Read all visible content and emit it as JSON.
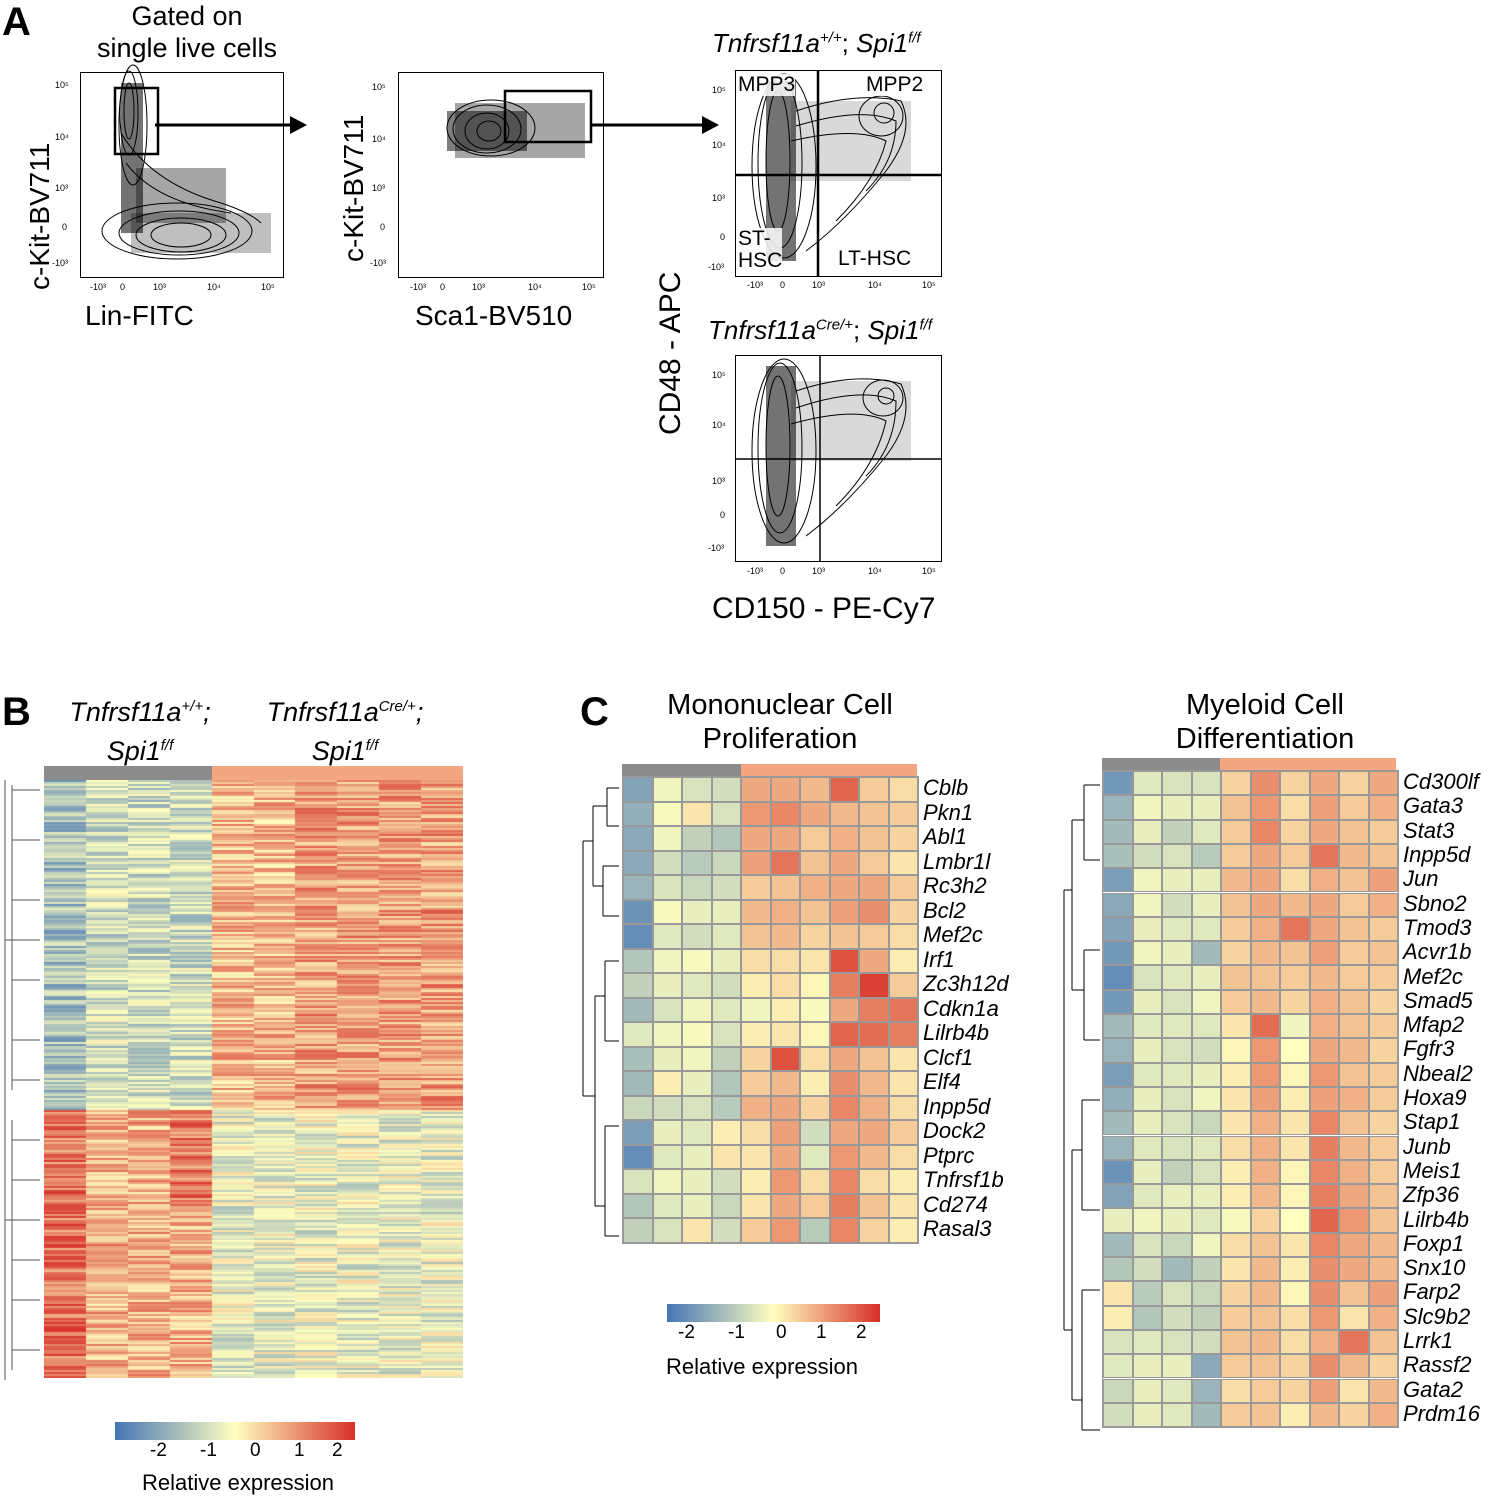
{
  "colors": {
    "ctrl_bar": "#8c8c8c",
    "cre_bar": "#f4a582",
    "low": "#4575b4",
    "mid": "#ffffbf",
    "high": "#d73027"
  },
  "panelA": {
    "label": "A",
    "gate_note_line1": "Gated on",
    "gate_note_line2": "single live cells",
    "plot1": {
      "xlabel": "Lin-FITC",
      "ylabel": "c-Kit-BV711"
    },
    "plot2": {
      "xlabel": "Sca1-BV510",
      "ylabel": "c-Kit-BV711"
    },
    "genotype_top": {
      "gene": "Tnfrsf11a",
      "gene_sup": "+/+",
      "sep": "; ",
      "flox": "Spi1",
      "flox_sup": "f/f"
    },
    "genotype_bottom": {
      "gene": "Tnfrsf11a",
      "gene_sup": "Cre/+",
      "sep": "; ",
      "flox": "Spi1",
      "flox_sup": "f/f"
    },
    "quadrants": {
      "tl": "MPP3",
      "tr": "MPP2",
      "bl_line1": "ST-",
      "bl_line2": "HSC",
      "br": "LT-HSC"
    },
    "shared_ylabel": "CD48 - APC",
    "shared_xlabel": "CD150 - PE-Cy7",
    "ticks_y": [
      "10⁵",
      "10⁴",
      "10³",
      "0",
      "-10³"
    ],
    "ticks_x": [
      "-10³",
      "0",
      "10³",
      "10⁴",
      "10⁵"
    ]
  },
  "panelB": {
    "label": "B",
    "group1": {
      "gene": "Tnfrsf11a",
      "gene_sup": "+/+",
      "flox": "Spi1",
      "flox_sup": "f/f"
    },
    "group2": {
      "gene": "Tnfrsf11a",
      "gene_sup": "Cre/+",
      "flox": "Spi1",
      "flox_sup": "f/f"
    },
    "legend": {
      "ticks": [
        "-2",
        "-1",
        "0",
        "1",
        "2"
      ],
      "title": "Relative expression"
    }
  },
  "panelC": {
    "label": "C",
    "heat1": {
      "title_line1": "Mononuclear Cell",
      "title_line2": "Proliferation",
      "genes": [
        "Cblb",
        "Pkn1",
        "Abl1",
        "Lmbr1l",
        "Rc3h2",
        "Bcl2",
        "Mef2c",
        "Irf1",
        "Zc3h12d",
        "Cdkn1a",
        "Lilrb4b",
        "Clcf1",
        "Elf4",
        "Inpp5d",
        "Dock2",
        "Ptprc",
        "Tnfrsf1b",
        "Cd274",
        "Rasal3"
      ],
      "matrix": [
        [
          -1.6,
          -0.2,
          -0.5,
          -0.6,
          1.0,
          1.0,
          0.8,
          1.8,
          0.6,
          0.4
        ],
        [
          -1.4,
          -0.1,
          0.3,
          -0.5,
          1.2,
          1.4,
          1.0,
          0.8,
          0.7,
          0.6
        ],
        [
          -1.5,
          -0.2,
          -0.8,
          -1.0,
          1.0,
          1.0,
          0.6,
          0.9,
          0.7,
          0.5
        ],
        [
          -1.5,
          -0.6,
          -0.9,
          -0.7,
          1.1,
          1.6,
          0.7,
          1.0,
          0.6,
          0.3
        ],
        [
          -1.3,
          -0.5,
          -0.7,
          -0.6,
          0.6,
          0.7,
          0.9,
          1.0,
          1.0,
          0.6
        ],
        [
          -1.9,
          -0.1,
          -0.3,
          -0.3,
          0.8,
          0.9,
          0.7,
          1.1,
          1.3,
          0.5
        ],
        [
          -2.0,
          -0.4,
          -0.6,
          -0.4,
          0.7,
          0.8,
          0.5,
          0.7,
          0.6,
          0.4
        ],
        [
          -1.0,
          -0.2,
          -0.1,
          -0.3,
          0.4,
          0.4,
          0.3,
          2.0,
          1.0,
          0.2
        ],
        [
          -0.8,
          -0.3,
          -0.4,
          -0.6,
          0.2,
          0.4,
          0.1,
          1.5,
          2.2,
          0.6
        ],
        [
          -1.2,
          -0.5,
          -0.2,
          -0.4,
          -0.2,
          0.2,
          -0.1,
          1.0,
          1.5,
          1.6
        ],
        [
          -0.4,
          -0.2,
          -0.1,
          -0.5,
          0.2,
          0.3,
          0.1,
          1.8,
          1.7,
          1.5
        ],
        [
          -1.1,
          -0.3,
          -0.2,
          -0.8,
          0.5,
          2.0,
          0.4,
          1.0,
          0.7,
          0.3
        ],
        [
          -1.2,
          0.2,
          -0.3,
          -1.0,
          0.6,
          0.8,
          0.2,
          1.3,
          0.8,
          0.3
        ],
        [
          -0.7,
          -0.6,
          -0.5,
          -0.9,
          0.9,
          1.0,
          0.5,
          1.4,
          0.9,
          0.4
        ],
        [
          -1.7,
          -0.3,
          -0.4,
          0.2,
          0.4,
          1.1,
          -0.6,
          1.0,
          1.0,
          0.6
        ],
        [
          -2.0,
          -0.4,
          -0.3,
          0.3,
          0.3,
          1.0,
          -0.4,
          1.2,
          0.8,
          0.4
        ],
        [
          -0.5,
          -0.2,
          -0.3,
          -0.6,
          0.2,
          1.2,
          0.4,
          1.4,
          0.4,
          0.2
        ],
        [
          -1.0,
          -0.4,
          -0.3,
          -0.7,
          0.3,
          1.0,
          0.6,
          1.5,
          0.7,
          0.3
        ],
        [
          -0.8,
          -0.5,
          0.3,
          -0.6,
          0.6,
          1.2,
          -0.9,
          1.4,
          0.5,
          0.2
        ]
      ]
    },
    "heat2": {
      "title_line1": "Myeloid Cell",
      "title_line2": "Differentiation",
      "genes": [
        "Cd300lf",
        "Gata3",
        "Stat3",
        "Inpp5d",
        "Jun",
        "Sbno2",
        "Tmod3",
        "Acvr1b",
        "Mef2c",
        "Smad5",
        "Mfap2",
        "Fgfr3",
        "Nbeal2",
        "Hoxa9",
        "Stap1",
        "Junb",
        "Meis1",
        "Zfp36",
        "Lilrb4b",
        "Foxp1",
        "Snx10",
        "Farp2",
        "Slc9b2",
        "Lrrk1",
        "Rassf2",
        "Gata2",
        "Prdm16"
      ],
      "matrix": [
        [
          -1.8,
          -0.4,
          -0.5,
          -0.5,
          0.5,
          1.3,
          0.5,
          1.0,
          0.5,
          1.0
        ],
        [
          -1.3,
          -0.2,
          -0.3,
          -0.3,
          0.7,
          1.2,
          0.4,
          1.1,
          0.6,
          0.9
        ],
        [
          -1.2,
          -0.3,
          -0.8,
          -0.4,
          0.6,
          1.4,
          0.5,
          1.0,
          0.7,
          0.6
        ],
        [
          -1.1,
          -0.6,
          -0.5,
          -0.9,
          0.6,
          1.0,
          0.6,
          1.6,
          0.8,
          0.7
        ],
        [
          -1.7,
          -0.2,
          -0.3,
          -0.3,
          0.8,
          1.0,
          0.4,
          0.9,
          0.7,
          1.1
        ],
        [
          -1.5,
          -0.2,
          -0.6,
          -0.3,
          0.7,
          1.0,
          0.8,
          1.0,
          0.6,
          0.9
        ],
        [
          -1.6,
          -0.3,
          -0.4,
          -0.4,
          0.6,
          0.9,
          1.6,
          1.0,
          0.7,
          0.6
        ],
        [
          -1.8,
          -0.2,
          -0.3,
          -1.2,
          0.5,
          0.8,
          0.7,
          1.1,
          0.6,
          0.7
        ],
        [
          -2.0,
          -0.5,
          -0.4,
          -0.3,
          0.7,
          0.7,
          0.6,
          0.8,
          0.6,
          0.6
        ],
        [
          -1.8,
          -0.3,
          -0.5,
          -0.2,
          0.6,
          0.8,
          0.5,
          0.9,
          0.7,
          0.5
        ],
        [
          -1.2,
          -0.4,
          -0.4,
          -0.4,
          0.3,
          1.7,
          -0.2,
          0.9,
          0.7,
          0.6
        ],
        [
          -1.3,
          -0.3,
          -0.5,
          -0.6,
          0.1,
          1.2,
          0.0,
          1.0,
          0.8,
          0.5
        ],
        [
          -1.7,
          -0.4,
          -0.4,
          -0.3,
          0.2,
          1.2,
          0.1,
          1.2,
          0.7,
          0.6
        ],
        [
          -1.4,
          -0.3,
          -0.5,
          -0.2,
          0.3,
          1.1,
          0.2,
          1.1,
          0.9,
          0.6
        ],
        [
          -1.2,
          -0.3,
          -0.5,
          -0.7,
          0.3,
          0.9,
          0.3,
          1.4,
          0.7,
          0.5
        ],
        [
          -1.3,
          -0.4,
          -0.5,
          -0.4,
          0.4,
          0.9,
          0.3,
          1.5,
          0.8,
          0.6
        ],
        [
          -1.9,
          -0.3,
          -0.8,
          -0.5,
          0.2,
          0.9,
          0.1,
          1.4,
          0.9,
          0.6
        ],
        [
          -1.6,
          -0.4,
          -0.3,
          -0.3,
          0.2,
          0.8,
          0.1,
          1.5,
          1.0,
          0.7
        ],
        [
          -0.3,
          -0.2,
          -0.3,
          -0.4,
          -0.1,
          0.5,
          0.0,
          1.8,
          1.2,
          0.7
        ],
        [
          -1.2,
          -0.5,
          -0.7,
          -0.2,
          0.4,
          0.7,
          0.3,
          1.4,
          1.0,
          0.8
        ],
        [
          -1.0,
          -0.6,
          -1.2,
          -0.8,
          0.3,
          0.8,
          0.2,
          1.3,
          1.0,
          0.8
        ],
        [
          0.3,
          -0.9,
          -0.5,
          -0.7,
          0.5,
          0.8,
          0.1,
          1.3,
          0.7,
          1.1
        ],
        [
          0.2,
          -1.0,
          -0.6,
          -0.8,
          0.6,
          0.7,
          0.4,
          1.2,
          0.3,
          0.9
        ],
        [
          -0.5,
          -0.4,
          -0.5,
          -0.6,
          0.7,
          0.8,
          0.4,
          0.9,
          1.6,
          0.7
        ],
        [
          -0.4,
          -0.3,
          -0.3,
          -1.5,
          0.6,
          0.7,
          0.5,
          1.3,
          0.8,
          0.5
        ],
        [
          -0.7,
          -0.3,
          -0.4,
          -1.3,
          0.4,
          0.6,
          0.5,
          1.1,
          0.3,
          0.8
        ],
        [
          -0.6,
          -0.3,
          -0.4,
          -1.2,
          0.6,
          0.7,
          0.2,
          0.8,
          0.5,
          0.9
        ]
      ]
    },
    "legend": {
      "ticks": [
        "-2",
        "-1",
        "0",
        "1",
        "2"
      ],
      "title": "Relative expression"
    }
  }
}
